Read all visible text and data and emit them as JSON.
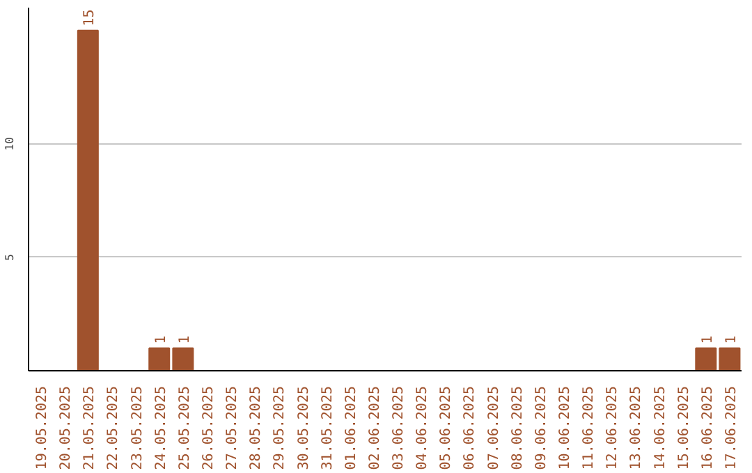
{
  "chart_data": {
    "type": "bar",
    "categories": [
      "19.05.2025",
      "20.05.2025",
      "21.05.2025",
      "22.05.2025",
      "23.05.2025",
      "24.05.2025",
      "25.05.2025",
      "26.05.2025",
      "27.05.2025",
      "28.05.2025",
      "29.05.2025",
      "30.05.2025",
      "31.05.2025",
      "01.06.2025",
      "02.06.2025",
      "03.06.2025",
      "04.06.2025",
      "05.06.2025",
      "06.06.2025",
      "07.06.2025",
      "08.06.2025",
      "09.06.2025",
      "10.06.2025",
      "11.06.2025",
      "12.06.2025",
      "13.06.2025",
      "14.06.2025",
      "15.06.2025",
      "16.06.2025",
      "17.06.2025"
    ],
    "values": [
      0,
      0,
      15,
      0,
      0,
      1,
      1,
      0,
      0,
      0,
      0,
      0,
      0,
      0,
      0,
      0,
      0,
      0,
      0,
      0,
      0,
      0,
      0,
      0,
      0,
      0,
      0,
      0,
      1,
      1
    ],
    "value_labels": [
      null,
      null,
      "15",
      null,
      null,
      "1",
      "1",
      null,
      null,
      null,
      null,
      null,
      null,
      null,
      null,
      null,
      null,
      null,
      null,
      null,
      null,
      null,
      null,
      null,
      null,
      null,
      null,
      null,
      "1",
      "1"
    ],
    "color": "#a0522d",
    "ylim": [
      0,
      16
    ],
    "yticks": [
      5,
      10
    ],
    "grid": "y"
  }
}
